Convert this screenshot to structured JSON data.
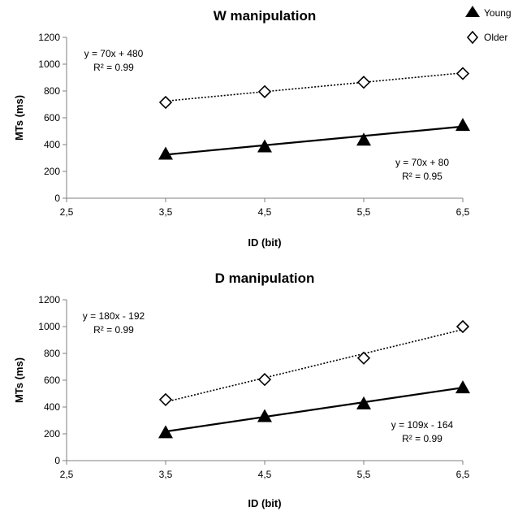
{
  "legend": {
    "items": [
      {
        "name": "Young",
        "marker": "filled-triangle",
        "color": "#000000"
      },
      {
        "name": "Older",
        "marker": "open-diamond",
        "color": "#000000"
      }
    ],
    "placement": "top-right"
  },
  "chart_data": [
    {
      "type": "line",
      "title": "W manipulation",
      "xlabel": "ID (bit)",
      "ylabel": "MTs (ms)",
      "xlim": [
        2.5,
        6.5
      ],
      "ylim": [
        0,
        1200
      ],
      "x_ticks": [
        "2,5",
        "3,5",
        "4,5",
        "5,5",
        "6,5"
      ],
      "y_ticks": [
        "0",
        "200",
        "400",
        "600",
        "800",
        "1000",
        "1200"
      ],
      "grid": false,
      "series": [
        {
          "name": "Young",
          "marker": "filled-triangle",
          "line_style": "solid",
          "x": [
            3.5,
            4.5,
            5.5,
            6.5
          ],
          "values": [
            330,
            385,
            435,
            545
          ],
          "trendline": {
            "slope": 70,
            "intercept": 80
          },
          "equation": "y = 70x + 80",
          "r2": "R² = 0.95",
          "label_position": "lower-right"
        },
        {
          "name": "Older",
          "marker": "open-diamond",
          "line_style": "dotted",
          "x": [
            3.5,
            4.5,
            5.5,
            6.5
          ],
          "values": [
            715,
            795,
            865,
            930
          ],
          "trendline": {
            "slope": 70,
            "intercept": 480
          },
          "equation": "y = 70x + 480",
          "r2": "R² = 0.99",
          "label_position": "upper-left"
        }
      ]
    },
    {
      "type": "line",
      "title": "D manipulation",
      "xlabel": "ID (bit)",
      "ylabel": "MTs (ms)",
      "xlim": [
        2.5,
        6.5
      ],
      "ylim": [
        0,
        1200
      ],
      "x_ticks": [
        "2,5",
        "3,5",
        "4,5",
        "5,5",
        "6,5"
      ],
      "y_ticks": [
        "0",
        "200",
        "400",
        "600",
        "800",
        "1000",
        "1200"
      ],
      "grid": false,
      "series": [
        {
          "name": "Young",
          "marker": "filled-triangle",
          "line_style": "solid",
          "x": [
            3.5,
            4.5,
            5.5,
            6.5
          ],
          "values": [
            210,
            330,
            425,
            545
          ],
          "trendline": {
            "slope": 109,
            "intercept": -164
          },
          "equation": "y = 109x - 164",
          "r2": "R² = 0.99",
          "label_position": "lower-right"
        },
        {
          "name": "Older",
          "marker": "open-diamond",
          "line_style": "dotted",
          "x": [
            3.5,
            4.5,
            5.5,
            6.5
          ],
          "values": [
            455,
            605,
            765,
            1000
          ],
          "trendline": {
            "slope": 180,
            "intercept": -192
          },
          "equation": "y = 180x - 192",
          "r2": "R² = 0.99",
          "label_position": "upper-left"
        }
      ]
    }
  ]
}
